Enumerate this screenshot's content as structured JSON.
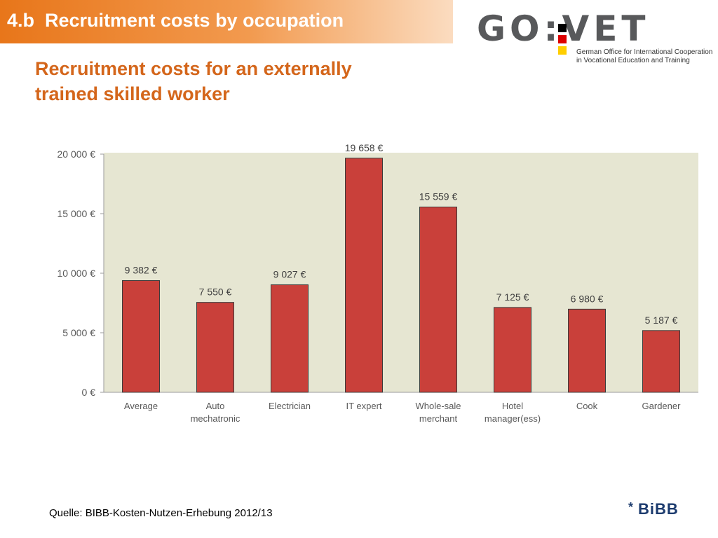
{
  "header": {
    "title": "4.b  Recruitment costs by occupation"
  },
  "logo": {
    "wordmark": "GO:VET",
    "subtitle_line1": "German Office for International Cooperation",
    "subtitle_line2": "in Vocational Education and Training",
    "flag_colors": [
      "#000000",
      "#dd0000",
      "#ffce00"
    ]
  },
  "footer": {
    "source": "Quelle: BIBB-Kosten-Nutzen-Erhebung 2012/13",
    "bibb_star": "*",
    "bibb_logo": "BiBB"
  },
  "colors": {
    "bar": "#c9403a",
    "plot_bg": "#e6e6d2",
    "accent": "#d4661b"
  },
  "chart_data": {
    "type": "bar",
    "title": "Recruitment costs for an externally trained skilled worker",
    "categories": [
      "Average",
      "Auto mechatronic",
      "Electrician",
      "IT expert",
      "Whole-sale merchant",
      "Hotel manager(ess)",
      "Cook",
      "Gardener"
    ],
    "category_lines": [
      [
        "Average"
      ],
      [
        "Auto",
        "mechatronic"
      ],
      [
        "Electrician"
      ],
      [
        "IT expert"
      ],
      [
        "Whole-sale",
        "merchant"
      ],
      [
        "Hotel",
        "manager(ess)"
      ],
      [
        "Cook"
      ],
      [
        "Gardener"
      ]
    ],
    "values": [
      9382,
      7550,
      9027,
      19658,
      15559,
      7125,
      6980,
      5187
    ],
    "data_labels": [
      "9 382 €",
      "7 550 €",
      "9 027 €",
      "19 658 €",
      "15 559 €",
      "7 125 €",
      "6 980 €",
      "5 187 €"
    ],
    "ylim": [
      0,
      20000
    ],
    "yticks": [
      0,
      5000,
      10000,
      15000,
      20000
    ],
    "ytick_labels": [
      "0 €",
      "5 000 €",
      "10 000 €",
      "15 000 €",
      "20 000 €"
    ],
    "xlabel": "",
    "ylabel": "",
    "grid": false,
    "legend": "none"
  }
}
